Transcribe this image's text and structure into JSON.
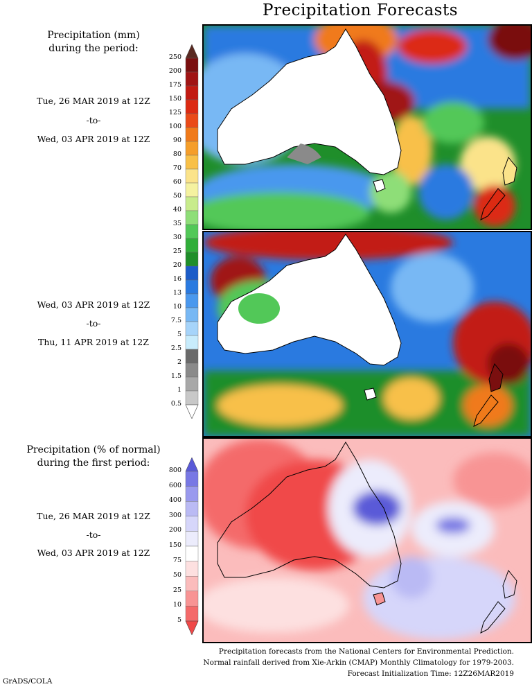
{
  "title": "Precipitation Forecasts",
  "legend_top": {
    "heading_line1": "Precipitation (mm)",
    "heading_line2": "during the period:",
    "ticks": [
      "250",
      "200",
      "175",
      "150",
      "125",
      "100",
      "90",
      "80",
      "70",
      "60",
      "50",
      "40",
      "35",
      "30",
      "25",
      "20",
      "16",
      "13",
      "10",
      "7.5",
      "5",
      "2.5",
      "2",
      "1.5",
      "1",
      "0.5"
    ],
    "colors": [
      "#5a2a22",
      "#7a0f0f",
      "#a01414",
      "#c21a12",
      "#dc2a12",
      "#ea4a18",
      "#f07a1a",
      "#f59e2a",
      "#f8c048",
      "#fbe38a",
      "#f5f2a0",
      "#c8ec8c",
      "#8ede78",
      "#52c858",
      "#30ae3a",
      "#1f8e2a",
      "#1c5cc8",
      "#2a7ae0",
      "#4a98ee",
      "#78b8f4",
      "#a6d4fa",
      "#c8ecfc",
      "#6a6a6a",
      "#8a8a8a",
      "#a8a8a8",
      "#c8c8c8",
      "#ffffff"
    ]
  },
  "period1": {
    "from": "Tue, 26 MAR 2019 at 12Z",
    "sep": "-to-",
    "to": "Wed, 03 APR 2019 at 12Z"
  },
  "period2": {
    "from": "Wed, 03 APR 2019 at 12Z",
    "sep": "-to-",
    "to": "Thu, 11 APR 2019 at 12Z"
  },
  "legend_bottom": {
    "heading_line1": "Precipitation (% of normal)",
    "heading_line2": "during the first period:",
    "ticks": [
      "800",
      "600",
      "400",
      "300",
      "200",
      "150",
      "75",
      "50",
      "25",
      "10",
      "5"
    ],
    "colors": [
      "#5a5ad8",
      "#7878e4",
      "#9a9aee",
      "#babaf4",
      "#d6d6fa",
      "#ececfc",
      "#ffffff",
      "#fde0e0",
      "#fbbcbc",
      "#f89494",
      "#f46a6a",
      "#f04848"
    ]
  },
  "period3": {
    "from": "Tue, 26 MAR 2019 at 12Z",
    "sep": "-to-",
    "to": "Wed, 03 APR 2019 at 12Z"
  },
  "footer": {
    "line1": "Precipitation forecasts from the National Centers for Environmental Prediction.",
    "line2": "Normal rainfall derived from Xie-Arkin (CMAP) Monthly Climatology for 1979-2003.",
    "line3": "Forecast Initialization Time: 12Z26MAR2019"
  },
  "credit": "GrADS/COLA"
}
